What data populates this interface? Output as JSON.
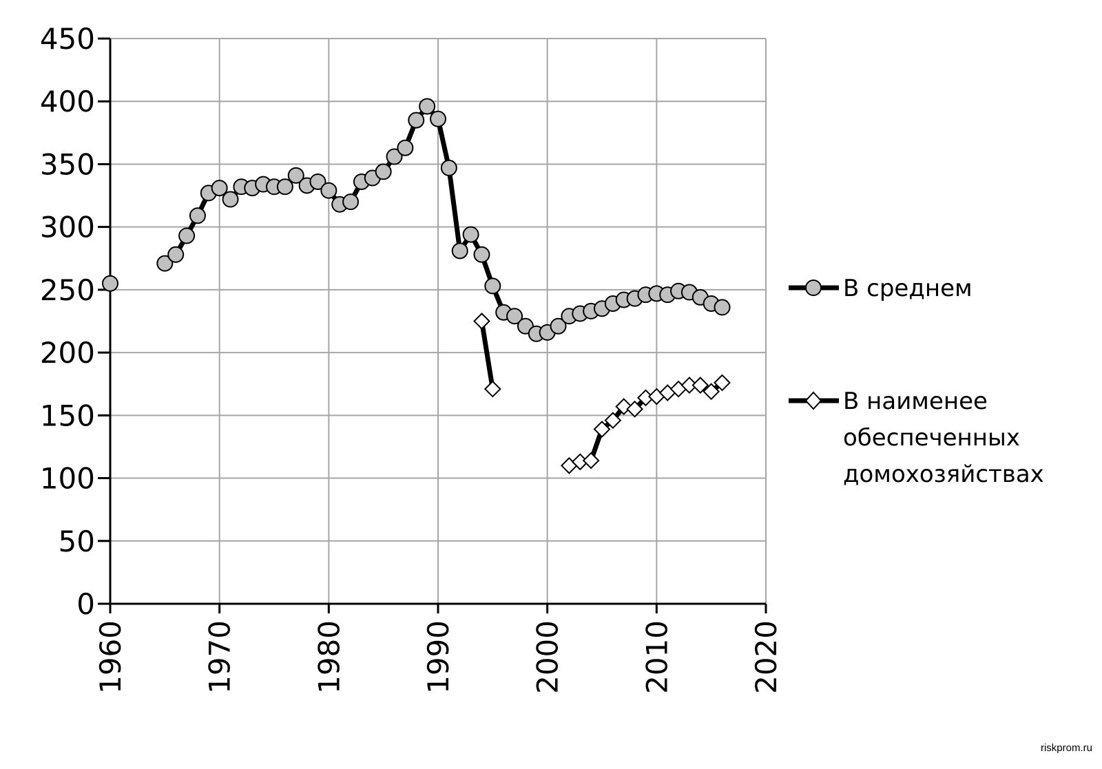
{
  "chart_data": {
    "type": "line",
    "xlim": [
      1960,
      2020
    ],
    "ylim": [
      0,
      450
    ],
    "x_ticks": [
      1960,
      1970,
      1980,
      1990,
      2000,
      2010,
      2020
    ],
    "y_ticks": [
      0,
      50,
      100,
      150,
      200,
      250,
      300,
      350,
      400,
      450
    ],
    "grid": true,
    "legend_position": "right",
    "series": [
      {
        "name": "В среднем",
        "marker": "circle",
        "marker_fill": "#c0c0c0",
        "line_color": "#000000",
        "points": [
          [
            1960,
            255
          ],
          [
            1965,
            271
          ],
          [
            1966,
            278
          ],
          [
            1967,
            293
          ],
          [
            1968,
            309
          ],
          [
            1969,
            327
          ],
          [
            1970,
            331
          ],
          [
            1971,
            322
          ],
          [
            1972,
            332
          ],
          [
            1973,
            331
          ],
          [
            1974,
            334
          ],
          [
            1975,
            332
          ],
          [
            1976,
            332
          ],
          [
            1977,
            341
          ],
          [
            1978,
            333
          ],
          [
            1979,
            336
          ],
          [
            1980,
            329
          ],
          [
            1981,
            318
          ],
          [
            1982,
            320
          ],
          [
            1983,
            336
          ],
          [
            1984,
            339
          ],
          [
            1985,
            344
          ],
          [
            1986,
            356
          ],
          [
            1987,
            363
          ],
          [
            1988,
            385
          ],
          [
            1989,
            396
          ],
          [
            1990,
            386
          ],
          [
            1991,
            347
          ],
          [
            1992,
            281
          ],
          [
            1993,
            294
          ],
          [
            1994,
            278
          ],
          [
            1995,
            253
          ],
          [
            1996,
            232
          ],
          [
            1997,
            229
          ],
          [
            1998,
            221
          ],
          [
            1999,
            215
          ],
          [
            2000,
            216
          ],
          [
            2001,
            221
          ],
          [
            2002,
            229
          ],
          [
            2003,
            231
          ],
          [
            2004,
            233
          ],
          [
            2005,
            235
          ],
          [
            2006,
            239
          ],
          [
            2007,
            242
          ],
          [
            2008,
            243
          ],
          [
            2009,
            246
          ],
          [
            2010,
            247
          ],
          [
            2011,
            246
          ],
          [
            2012,
            249
          ],
          [
            2013,
            248
          ],
          [
            2014,
            244
          ],
          [
            2015,
            239
          ],
          [
            2016,
            236
          ]
        ]
      },
      {
        "name": "В наименее обеспеченных домохозяйствах",
        "name_lines": [
          "В наименее",
          "обеспеченных",
          "домохозяйствах"
        ],
        "marker": "diamond",
        "marker_fill": "#ffffff",
        "line_color": "#000000",
        "segments": [
          [
            [
              1994,
              225
            ],
            [
              1995,
              171
            ]
          ],
          [
            [
              2002,
              110
            ],
            [
              2003,
              113
            ],
            [
              2004,
              114
            ],
            [
              2005,
              139
            ],
            [
              2006,
              146
            ],
            [
              2007,
              157
            ],
            [
              2008,
              155
            ],
            [
              2009,
              164
            ],
            [
              2010,
              165
            ],
            [
              2011,
              168
            ],
            [
              2012,
              171
            ],
            [
              2013,
              174
            ],
            [
              2014,
              174
            ],
            [
              2015,
              169
            ],
            [
              2016,
              176
            ]
          ]
        ]
      }
    ]
  },
  "watermark": "riskprom.ru"
}
